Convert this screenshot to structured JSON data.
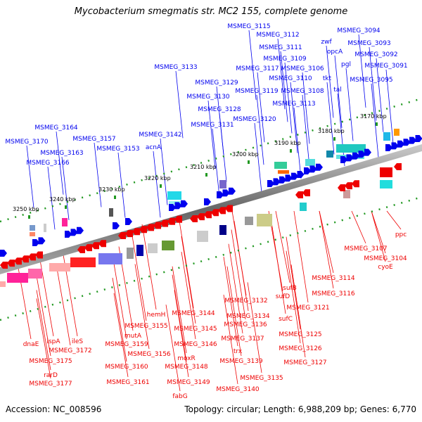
{
  "header": {
    "title": "Mycobacterium smegmatis str. MC2 155, complete genome"
  },
  "footer": {
    "accession": "Accession: NC_008596",
    "summary": "Topology: circular; Length: 6,988,209 bp; Genes: 6,770"
  },
  "colors": {
    "forward": "#0000ee",
    "reverse": "#ee0000",
    "backbone": "#777777",
    "tick": "#229922"
  },
  "scale_ticks": [
    "3170 kbp",
    "3180 kbp",
    "3190 kbp",
    "3200 kbp",
    "3210 kbp",
    "3220 kbp",
    "3230 kbp",
    "3240 kbp",
    "3250 kbp"
  ],
  "top_labels": [
    "MSMEG_3115",
    "MSMEG_3094",
    "MSMEG_3112",
    "zwf",
    "MSMEG_3093",
    "MSMEG_3111",
    "opcA",
    "MSMEG_3092",
    "MSMEG_3109",
    "MSMEG_3091",
    "MSMEG_3117",
    "MSMEG_3106",
    "pgl",
    "MSMEG_3133",
    "MSMEG_3110",
    "tkt",
    "MSMEG_3095",
    "MSMEG_3129",
    "MSMEG_3119",
    "MSMEG_3108",
    "tal",
    "MSMEG_3130",
    "MSMEG_3113",
    "MSMEG_3128",
    "MSMEG_3120",
    "MSMEG_3131",
    "MSMEG_3164",
    "MSMEG_3142",
    "MSMEG_3157",
    "MSMEG_3170",
    "acnA",
    "MSMEG_3153",
    "MSMEG_3163",
    "MSMEG_3166"
  ],
  "bottom_labels": [
    "ppc",
    "MSMEG_3107",
    "MSMEG_3104",
    "cyoE",
    "MSMEG_3114",
    "MSMEG_3116",
    "sufB",
    "sufD",
    "MSMEG_3121",
    "MSMEG_3132",
    "sufC",
    "MSMEG_3134",
    "MSMEG_3144",
    "hemH",
    "MSMEG_3136",
    "MSMEG_3125",
    "MSMEG_3155",
    "MSMEG_3145",
    "mutA",
    "MSMEG_3126",
    "MSMEG_3137",
    "dnaE",
    "lspA",
    "ileS",
    "MSMEG_3159",
    "MSMEG_3146",
    "MSMEG_3127",
    "MSMEG_3172",
    "MSMEG_3156",
    "moxR",
    "MSMEG_3139",
    "trx",
    "MSMEG_3175",
    "MSMEG_3148",
    "MSMEG_3160",
    "MSMEG_3135",
    "rarD",
    "MSMEG_3161",
    "MSMEG_3149",
    "MSMEG_3177",
    "MSMEG_3140",
    "fabG"
  ]
}
